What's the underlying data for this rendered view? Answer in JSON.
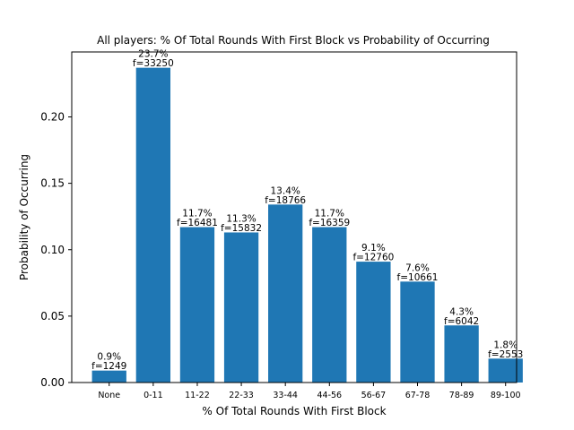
{
  "chart_data": {
    "type": "bar",
    "title": "All players: % Of Total Rounds With First Block vs Probability of Occurring",
    "xlabel": "% Of Total Rounds With First Block",
    "ylabel": "Probability of Occurring",
    "ylim": [
      0,
      0.2489
    ],
    "yticks": [
      "0.00",
      "0.05",
      "0.10",
      "0.15",
      "0.20"
    ],
    "categories": [
      "None",
      "0-11",
      "11-22",
      "22-33",
      "33-44",
      "44-56",
      "56-67",
      "67-78",
      "78-89",
      "89-100"
    ],
    "values": [
      0.009,
      0.237,
      0.117,
      0.113,
      0.134,
      0.117,
      0.091,
      0.076,
      0.043,
      0.018
    ],
    "percent_labels": [
      "0.9%",
      "23.7%",
      "11.7%",
      "11.3%",
      "13.4%",
      "11.7%",
      "9.1%",
      "7.6%",
      "4.3%",
      "1.8%"
    ],
    "freq_labels": [
      "f=1249",
      "f=33250",
      "f=16481",
      "f=15832",
      "f=18766",
      "f=16359",
      "f=12760",
      "f=10661",
      "f=6042",
      "f=2553"
    ],
    "bar_color": "#1f77b4",
    "grid": false,
    "legend": "none"
  }
}
